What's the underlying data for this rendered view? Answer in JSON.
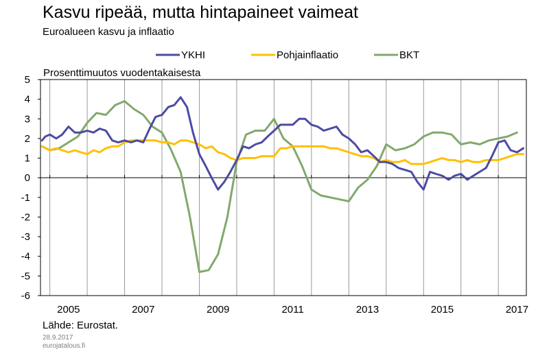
{
  "title": "Kasvu ripeää, mutta hintapaineet vaimeat",
  "subtitle": "Euroalueen kasvu ja inflaatio",
  "source": "Lähde: Eurostat.",
  "date": "28.9.2017",
  "site": "eurojatalous.fi",
  "chart_data": {
    "type": "line",
    "title": "Kasvu ripeää, mutta hintapaineet vaimeat",
    "subtitle": "Euroalueen kasvu ja inflaatio",
    "ylabel": "Prosenttimuutos vuodentakaisesta",
    "xlabel": "",
    "ylim": [
      -6,
      5
    ],
    "xlim": [
      2004.75,
      2017.75
    ],
    "yticks": [
      "5",
      "4",
      "3",
      "2",
      "1",
      "0",
      "-1",
      "-2",
      "-3",
      "-4",
      "-5",
      "-6"
    ],
    "xticks": [
      "2005",
      "2007",
      "2009",
      "2011",
      "2013",
      "2015",
      "2017"
    ],
    "grid": "vertical",
    "legend": "top",
    "series": [
      {
        "name": "YKHI",
        "color": "#4b4ba3",
        "x": [
          2004.79,
          2004.88,
          2005.0,
          2005.17,
          2005.33,
          2005.5,
          2005.67,
          2005.83,
          2006.0,
          2006.17,
          2006.33,
          2006.5,
          2006.67,
          2006.83,
          2007.0,
          2007.17,
          2007.33,
          2007.5,
          2007.67,
          2007.83,
          2008.0,
          2008.17,
          2008.33,
          2008.5,
          2008.67,
          2008.83,
          2009.0,
          2009.17,
          2009.33,
          2009.5,
          2009.67,
          2009.83,
          2010.0,
          2010.17,
          2010.33,
          2010.5,
          2010.67,
          2010.83,
          2011.0,
          2011.17,
          2011.33,
          2011.5,
          2011.67,
          2011.83,
          2012.0,
          2012.17,
          2012.33,
          2012.5,
          2012.67,
          2012.83,
          2013.0,
          2013.17,
          2013.33,
          2013.5,
          2013.67,
          2013.83,
          2014.0,
          2014.17,
          2014.33,
          2014.5,
          2014.67,
          2014.83,
          2015.0,
          2015.17,
          2015.33,
          2015.5,
          2015.67,
          2015.83,
          2016.0,
          2016.17,
          2016.33,
          2016.5,
          2016.67,
          2016.83,
          2017.0,
          2017.17,
          2017.33,
          2017.5,
          2017.67
        ],
        "values": [
          1.9,
          2.1,
          2.2,
          2.0,
          2.2,
          2.6,
          2.3,
          2.3,
          2.4,
          2.3,
          2.5,
          2.4,
          1.9,
          1.8,
          1.9,
          1.8,
          1.9,
          1.8,
          2.5,
          3.1,
          3.2,
          3.6,
          3.7,
          4.1,
          3.6,
          2.3,
          1.2,
          0.6,
          0.0,
          -0.6,
          -0.2,
          0.3,
          0.9,
          1.6,
          1.5,
          1.7,
          1.8,
          2.1,
          2.4,
          2.7,
          2.7,
          2.7,
          3.0,
          3.0,
          2.7,
          2.6,
          2.4,
          2.5,
          2.6,
          2.2,
          2.0,
          1.7,
          1.3,
          1.4,
          1.1,
          0.8,
          0.8,
          0.7,
          0.5,
          0.4,
          0.3,
          -0.2,
          -0.6,
          0.3,
          0.2,
          0.1,
          -0.1,
          0.1,
          0.2,
          -0.1,
          0.1,
          0.3,
          0.5,
          1.1,
          1.8,
          1.9,
          1.4,
          1.3,
          1.5
        ]
      },
      {
        "name": "Pohjainflaatio",
        "color": "#ffc000",
        "x": [
          2004.79,
          2005.0,
          2005.17,
          2005.33,
          2005.5,
          2005.67,
          2005.83,
          2006.0,
          2006.17,
          2006.33,
          2006.5,
          2006.67,
          2006.83,
          2007.0,
          2007.17,
          2007.33,
          2007.5,
          2007.67,
          2007.83,
          2008.0,
          2008.17,
          2008.33,
          2008.5,
          2008.67,
          2008.83,
          2009.0,
          2009.17,
          2009.33,
          2009.5,
          2009.67,
          2009.83,
          2010.0,
          2010.17,
          2010.33,
          2010.5,
          2010.67,
          2010.83,
          2011.0,
          2011.17,
          2011.33,
          2011.5,
          2011.67,
          2011.83,
          2012.0,
          2012.17,
          2012.33,
          2012.5,
          2012.67,
          2012.83,
          2013.0,
          2013.17,
          2013.33,
          2013.5,
          2013.67,
          2013.83,
          2014.0,
          2014.17,
          2014.33,
          2014.5,
          2014.67,
          2014.83,
          2015.0,
          2015.17,
          2015.33,
          2015.5,
          2015.67,
          2015.83,
          2016.0,
          2016.17,
          2016.33,
          2016.5,
          2016.67,
          2016.83,
          2017.0,
          2017.17,
          2017.33,
          2017.5,
          2017.67
        ],
        "values": [
          1.6,
          1.4,
          1.5,
          1.4,
          1.3,
          1.4,
          1.3,
          1.2,
          1.4,
          1.3,
          1.5,
          1.6,
          1.6,
          1.8,
          1.9,
          1.9,
          1.9,
          1.9,
          1.9,
          1.8,
          1.8,
          1.7,
          1.9,
          1.9,
          1.8,
          1.7,
          1.5,
          1.6,
          1.3,
          1.2,
          1.0,
          0.9,
          1.0,
          1.0,
          1.0,
          1.1,
          1.1,
          1.1,
          1.5,
          1.5,
          1.6,
          1.6,
          1.6,
          1.6,
          1.6,
          1.6,
          1.5,
          1.5,
          1.4,
          1.3,
          1.2,
          1.1,
          1.1,
          1.0,
          0.8,
          0.9,
          0.8,
          0.8,
          0.9,
          0.7,
          0.7,
          0.7,
          0.8,
          0.9,
          1.0,
          0.9,
          0.9,
          0.8,
          0.9,
          0.8,
          0.8,
          0.9,
          0.9,
          0.9,
          1.0,
          1.1,
          1.2,
          1.2
        ]
      },
      {
        "name": "BKT",
        "color": "#82a86b",
        "x": [
          2004.79,
          2005.0,
          2005.25,
          2005.5,
          2005.75,
          2006.0,
          2006.25,
          2006.5,
          2006.75,
          2007.0,
          2007.25,
          2007.5,
          2007.75,
          2008.0,
          2008.25,
          2008.5,
          2008.75,
          2009.0,
          2009.25,
          2009.5,
          2009.75,
          2010.0,
          2010.25,
          2010.5,
          2010.75,
          2011.0,
          2011.25,
          2011.5,
          2011.75,
          2012.0,
          2012.25,
          2012.5,
          2012.75,
          2013.0,
          2013.25,
          2013.5,
          2013.75,
          2014.0,
          2014.25,
          2014.5,
          2014.75,
          2015.0,
          2015.25,
          2015.5,
          2015.75,
          2016.0,
          2016.25,
          2016.5,
          2016.75,
          2017.0,
          2017.25,
          2017.5
        ],
        "values": [
          1.6,
          1.4,
          1.5,
          1.8,
          2.1,
          2.8,
          3.3,
          3.2,
          3.7,
          3.9,
          3.5,
          3.2,
          2.6,
          2.3,
          1.4,
          0.3,
          -2.0,
          -4.8,
          -4.7,
          -3.9,
          -2.0,
          0.8,
          2.2,
          2.4,
          2.4,
          3.0,
          2.0,
          1.6,
          0.6,
          -0.6,
          -0.9,
          -1.0,
          -1.1,
          -1.2,
          -0.5,
          -0.1,
          0.6,
          1.7,
          1.4,
          1.5,
          1.7,
          2.1,
          2.3,
          2.3,
          2.2,
          1.7,
          1.8,
          1.7,
          1.9,
          2.0,
          2.1,
          2.3
        ]
      }
    ]
  }
}
